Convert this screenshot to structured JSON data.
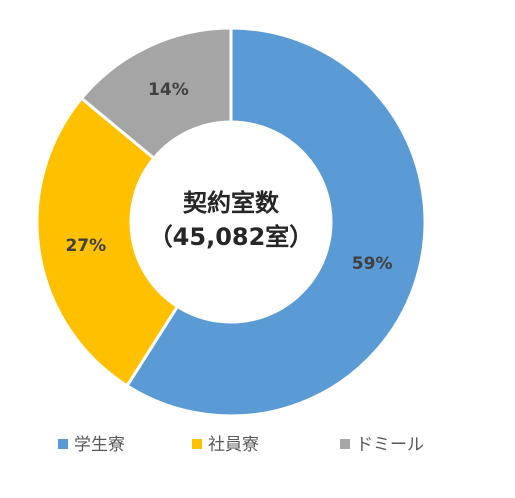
{
  "chart_data": {
    "type": "pie",
    "donut": true,
    "center_label": [
      "契約室数",
      "（45,082室）"
    ],
    "categories": [
      "学生寮",
      "社員寮",
      "ドミール"
    ],
    "values": [
      59,
      27,
      14
    ],
    "data_labels": [
      "59%",
      "27%",
      "14%"
    ],
    "colors": [
      "#5B9BD5",
      "#FFC000",
      "#A5A5A5"
    ],
    "legend_position": "bottom"
  }
}
